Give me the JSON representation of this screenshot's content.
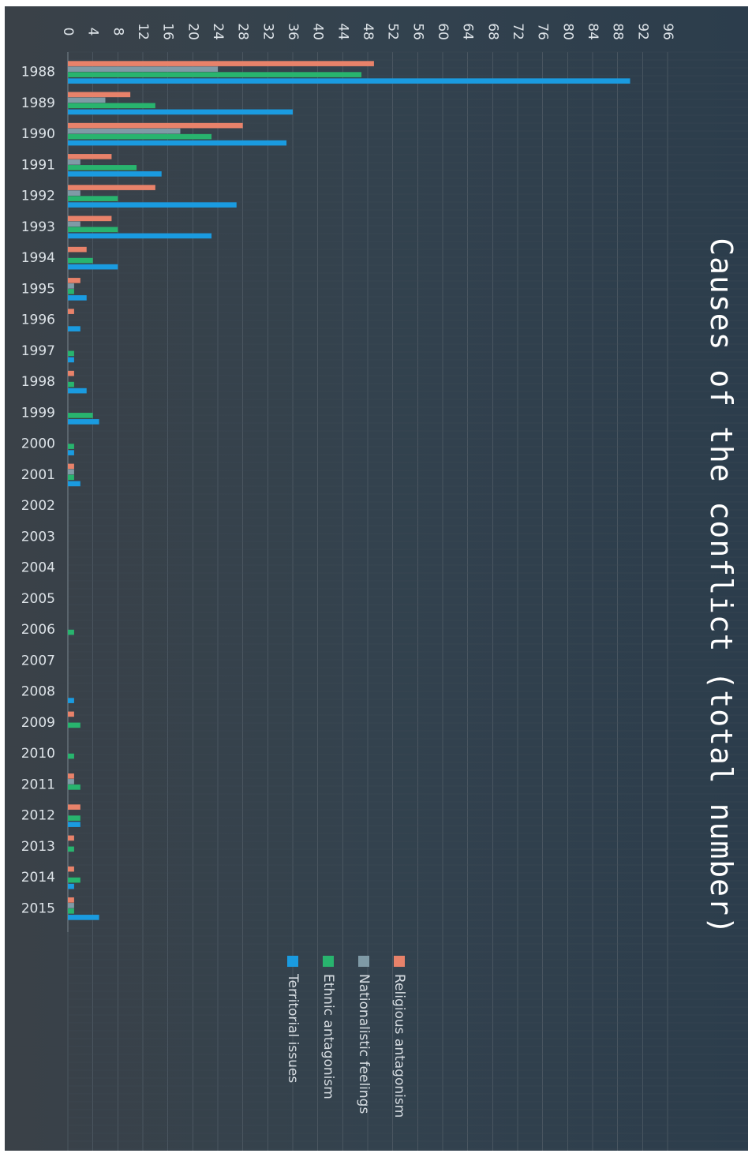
{
  "chart_data": {
    "type": "bar",
    "orientation": "horizontal",
    "title": "Causes of the conflict (total number)",
    "categories": [
      "1988",
      "1989",
      "1990",
      "1991",
      "1992",
      "1993",
      "1994",
      "1995",
      "1996",
      "1997",
      "1998",
      "1999",
      "2000",
      "2001",
      "2002",
      "2003",
      "2004",
      "2005",
      "2006",
      "2007",
      "2008",
      "2009",
      "2010",
      "2011",
      "2012",
      "2013",
      "2014",
      "2015"
    ],
    "xticks": [
      0,
      4,
      8,
      12,
      16,
      20,
      24,
      28,
      32,
      36,
      40,
      44,
      48,
      52,
      56,
      60,
      64,
      68,
      72,
      76,
      80,
      84,
      88,
      92,
      96
    ],
    "xlim": [
      0,
      96
    ],
    "grid": true,
    "legend_position": "bottom",
    "series": [
      {
        "name": "Religious antagonism",
        "color": "#e8826a",
        "values": [
          49,
          10,
          28,
          7,
          14,
          7,
          3,
          2,
          1,
          0,
          1,
          0,
          0,
          1,
          0,
          0,
          0,
          0,
          0,
          0,
          0,
          1,
          0,
          1,
          2,
          1,
          1,
          1
        ]
      },
      {
        "name": "Nationalistic feelings",
        "color": "#7f9aa6",
        "values": [
          24,
          6,
          18,
          2,
          2,
          2,
          0,
          1,
          0,
          0,
          0,
          0,
          0,
          1,
          0,
          0,
          0,
          0,
          0,
          0,
          0,
          0,
          0,
          1,
          0,
          0,
          0,
          1
        ]
      },
      {
        "name": "Ethnic antagonism",
        "color": "#28b46e",
        "values": [
          47,
          14,
          23,
          11,
          8,
          8,
          4,
          1,
          0,
          1,
          1,
          4,
          1,
          1,
          0,
          0,
          0,
          0,
          1,
          0,
          0,
          2,
          1,
          2,
          2,
          1,
          2,
          1
        ]
      },
      {
        "name": "Territorial issues",
        "color": "#1a9be0",
        "values": [
          90,
          36,
          35,
          15,
          27,
          23,
          8,
          3,
          2,
          1,
          3,
          5,
          1,
          2,
          0,
          0,
          0,
          0,
          0,
          0,
          1,
          0,
          0,
          0,
          2,
          0,
          1,
          5
        ]
      }
    ]
  }
}
